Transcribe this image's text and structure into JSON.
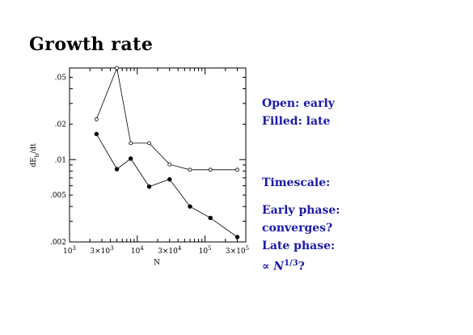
{
  "slide": {
    "title": "Growth rate",
    "notes_top": [
      "Open: early",
      "Filled: late"
    ],
    "timescale": "Timescale:",
    "notes_bottom": [
      "Early phase:",
      "converges?",
      "Late phase:",
      "∝ N^{1/3}?"
    ]
  },
  "colors": {
    "notes_text": "#1a1aa6",
    "axis": "#000000"
  },
  "chart_data": {
    "type": "line",
    "xlabel": "N",
    "ylabel": "dE_b/dt",
    "xscale": "log",
    "yscale": "log",
    "xlim": [
      1000,
      400000
    ],
    "ylim": [
      0.002,
      0.06
    ],
    "x_ticks": [
      {
        "value": 1000,
        "label": "10^3"
      },
      {
        "value": 3000,
        "label": "3×10^3"
      },
      {
        "value": 10000,
        "label": "10^4"
      },
      {
        "value": 30000,
        "label": "3×10^4"
      },
      {
        "value": 100000,
        "label": "10^5"
      },
      {
        "value": 300000,
        "label": "3×10^5"
      }
    ],
    "y_ticks": [
      {
        "value": 0.002,
        "label": ".002"
      },
      {
        "value": 0.005,
        "label": ".005"
      },
      {
        "value": 0.01,
        "label": ".01"
      },
      {
        "value": 0.02,
        "label": ".02"
      },
      {
        "value": 0.05,
        "label": ".05"
      }
    ],
    "series": [
      {
        "marker": "open",
        "x": [
          2500,
          5000,
          8000,
          15000,
          30000,
          60000,
          120000,
          300000
        ],
        "y": [
          0.022,
          0.06,
          0.0138,
          0.0138,
          0.0091,
          0.0082,
          0.0082,
          0.0082
        ]
      },
      {
        "marker": "filled",
        "x": [
          2500,
          5000,
          8000,
          15000,
          30000,
          60000,
          120000,
          300000
        ],
        "y": [
          0.0165,
          0.0083,
          0.0102,
          0.0059,
          0.0068,
          0.004,
          0.0032,
          0.0022
        ]
      }
    ]
  }
}
